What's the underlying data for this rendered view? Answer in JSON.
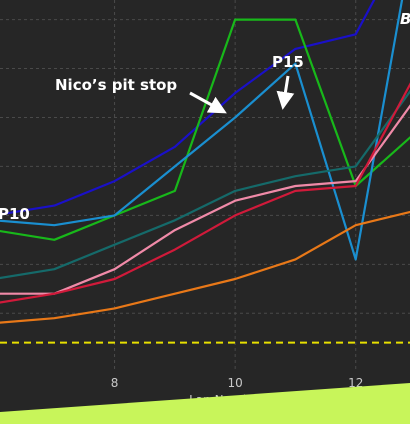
{
  "colors": {
    "background": "#262626",
    "grid": "#4a4a4a",
    "axis_text": "#c9c9c9",
    "reference_line": "#e8e000",
    "banner": "#c8f55a",
    "corner_left": "#d8e000",
    "corner_right": "#ffffff"
  },
  "corner_left": "",
  "corner_right": "B",
  "chart_data": {
    "type": "line",
    "xlabel": "Lap Number",
    "ylabel": "",
    "xlim": [
      6.1,
      12.9
    ],
    "xticks": [
      8,
      10,
      12
    ],
    "grid": true,
    "ylim": [
      10.2,
      2.6
    ],
    "reference_y": 9.6,
    "reference_style": "dashed",
    "series": [
      {
        "color": "#1a10c8",
        "x": [
          6,
          7,
          8,
          9,
          10,
          11,
          12,
          13
        ],
        "y": [
          7.0,
          6.8,
          6.3,
          5.6,
          4.5,
          3.6,
          3.3,
          1.0
        ]
      },
      {
        "color": "#18b81a",
        "x": [
          6,
          7,
          8,
          9,
          10,
          11,
          12,
          13
        ],
        "y": [
          7.3,
          7.5,
          7.0,
          6.5,
          3.0,
          3.0,
          6.4,
          5.3
        ]
      },
      {
        "color": "#1a8fd0",
        "x": [
          6,
          7,
          8,
          9,
          10,
          11,
          12,
          13
        ],
        "y": [
          7.1,
          7.2,
          7.0,
          6.0,
          5.0,
          3.9,
          7.9,
          1.0
        ]
      },
      {
        "color": "#156a6a",
        "x": [
          6,
          7,
          8,
          9,
          10,
          11,
          12,
          13
        ],
        "y": [
          8.3,
          8.1,
          7.6,
          7.1,
          6.5,
          6.2,
          6.0,
          4.3
        ]
      },
      {
        "color": "#f08aa8",
        "x": [
          6,
          7,
          8,
          9,
          10,
          11,
          12,
          13
        ],
        "y": [
          8.6,
          8.6,
          8.1,
          7.3,
          6.7,
          6.4,
          6.3,
          4.6
        ]
      },
      {
        "color": "#d01a3a",
        "x": [
          6,
          7,
          8,
          9,
          10,
          11,
          12,
          13
        ],
        "y": [
          8.8,
          8.6,
          8.3,
          7.7,
          7.0,
          6.5,
          6.4,
          4.1
        ]
      },
      {
        "color": "#e87818",
        "x": [
          6,
          7,
          8,
          9,
          10,
          11,
          12,
          13
        ],
        "y": [
          9.2,
          9.1,
          8.9,
          8.6,
          8.3,
          7.9,
          7.2,
          6.9
        ]
      }
    ],
    "annotations": [
      {
        "text": "Nico’s pit stop"
      },
      {
        "text": "P15"
      },
      {
        "text": "P10"
      }
    ]
  }
}
